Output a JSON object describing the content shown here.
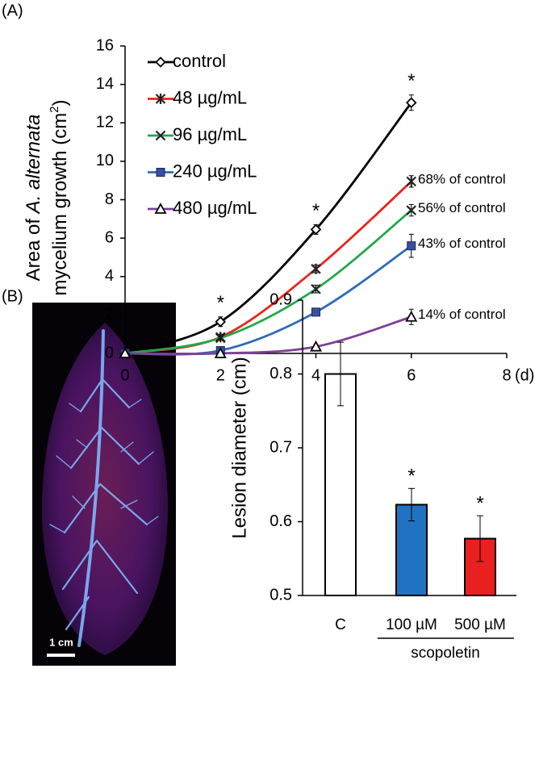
{
  "chart_data": [
    {
      "type": "line",
      "panel": "(A)",
      "ylabel": {
        "start": "Area of ",
        "italic": "A. alternata",
        "line2": "mycelium growth (cm",
        "sup": "2",
        "end": ")"
      },
      "xunit": "(d)",
      "x": [
        0,
        2,
        4,
        6
      ],
      "xlim": [
        0,
        8
      ],
      "xticks": [
        0,
        2,
        4,
        6,
        8
      ],
      "ylim": [
        0,
        16
      ],
      "yticks": [
        0,
        2,
        4,
        6,
        8,
        10,
        12,
        14,
        16
      ],
      "significance": [
        null,
        "*",
        "*",
        "*"
      ],
      "series": [
        {
          "name": "control",
          "color": "#000000",
          "marker": "diamond",
          "values": [
            0,
            1.65,
            6.45,
            13.05
          ],
          "errors": [
            null,
            0.25,
            0.25,
            0.4
          ]
        },
        {
          "name": "48 µg/mL",
          "color": "#e8241c",
          "marker": "asterisk",
          "values": [
            0,
            0.85,
            4.4,
            8.95
          ],
          "errors": [
            null,
            0.15,
            0.2,
            0.3
          ],
          "end_label": "68% of control"
        },
        {
          "name": "96 µg/mL",
          "color": "#22a84a",
          "marker": "x",
          "values": [
            0,
            0.8,
            3.35,
            7.45
          ],
          "errors": [
            null,
            0.1,
            0.2,
            0.3
          ],
          "end_label": "56% of control"
        },
        {
          "name": "240 µg/mL",
          "color": "#2f6bb5",
          "marker": "square",
          "values": [
            0,
            0.15,
            2.15,
            5.6
          ],
          "errors": [
            null,
            null,
            0.1,
            0.6
          ],
          "end_label": "43% of control"
        },
        {
          "name": "480 µg/mL",
          "color": "#7f3f98",
          "marker": "triangle",
          "values": [
            0,
            0,
            0.35,
            1.9
          ],
          "errors": [
            null,
            null,
            0.1,
            0.4
          ],
          "end_label": "14% of control"
        }
      ]
    },
    {
      "type": "bar",
      "panel": "(B)",
      "ylabel": "Lesion diameter (cm)",
      "categories": [
        "C",
        "100 µM",
        "500 µM"
      ],
      "group_label": "scopoletin",
      "values": [
        0.8,
        0.623,
        0.577
      ],
      "errors": [
        0.043,
        0.022,
        0.031
      ],
      "colors": [
        "#ffffff",
        "#2272c3",
        "#e8201e"
      ],
      "significance": [
        null,
        "*",
        "*"
      ],
      "ylim": [
        0.5,
        0.9
      ],
      "yticks": [
        0.5,
        0.6,
        0.7,
        0.8,
        0.9
      ],
      "scale_bar": "1 cm"
    }
  ]
}
